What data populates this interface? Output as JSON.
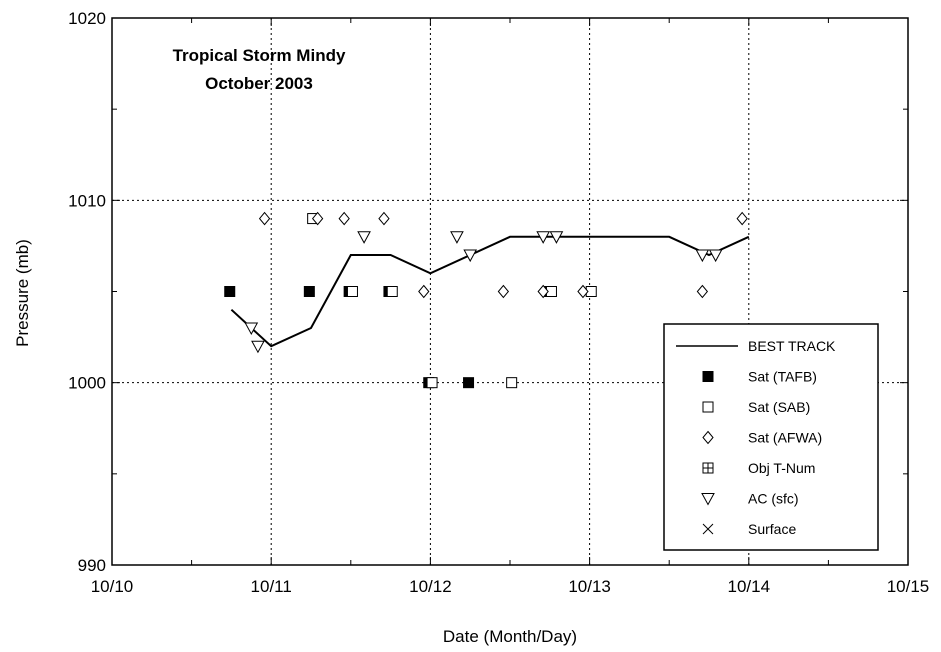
{
  "chart_data": {
    "type": "scatter",
    "title": "Tropical Storm Mindy",
    "subtitle": "October 2003",
    "xlabel": "Date (Month/Day)",
    "ylabel": "Pressure (mb)",
    "xlim": [
      "10/10 00:00",
      "10/15 00:00"
    ],
    "ylim": [
      990,
      1020
    ],
    "x_ticks": [
      "10/10",
      "10/11",
      "10/12",
      "10/13",
      "10/14",
      "10/15"
    ],
    "y_ticks": [
      "990",
      "1000",
      "1010",
      "1020"
    ],
    "grid": "dotted at major ticks",
    "legend_position": "bottom-right",
    "series": [
      {
        "name": "BEST TRACK",
        "marker": "line",
        "points": [
          {
            "x": "10/10 18:00",
            "y": 1004
          },
          {
            "x": "10/11 00:00",
            "y": 1002
          },
          {
            "x": "10/11 06:00",
            "y": 1003
          },
          {
            "x": "10/11 12:00",
            "y": 1007
          },
          {
            "x": "10/11 18:00",
            "y": 1007
          },
          {
            "x": "10/12 00:00",
            "y": 1006
          },
          {
            "x": "10/12 12:00",
            "y": 1008
          },
          {
            "x": "10/13 12:00",
            "y": 1008
          },
          {
            "x": "10/13 18:00",
            "y": 1007
          },
          {
            "x": "10/14 00:00",
            "y": 1008
          }
        ]
      },
      {
        "name": "Sat (TAFB)",
        "marker": "filled-square",
        "points": [
          {
            "x": "10/10 17:45",
            "y": 1005
          },
          {
            "x": "10/11 05:45",
            "y": 1005
          },
          {
            "x": "10/11 11:45",
            "y": 1005
          },
          {
            "x": "10/11 17:45",
            "y": 1005
          },
          {
            "x": "10/11 23:45",
            "y": 1000
          },
          {
            "x": "10/12 05:45",
            "y": 1000
          },
          {
            "x": "10/12 17:45",
            "y": 1005
          }
        ]
      },
      {
        "name": "Sat (SAB)",
        "marker": "open-square",
        "points": [
          {
            "x": "10/11 06:15",
            "y": 1009
          },
          {
            "x": "10/11 12:15",
            "y": 1005
          },
          {
            "x": "10/11 18:15",
            "y": 1005
          },
          {
            "x": "10/12 00:15",
            "y": 1000
          },
          {
            "x": "10/12 12:15",
            "y": 1000
          },
          {
            "x": "10/12 18:15",
            "y": 1005
          },
          {
            "x": "10/13 00:15",
            "y": 1005
          }
        ]
      },
      {
        "name": "Sat (AFWA)",
        "marker": "diamond",
        "points": [
          {
            "x": "10/10 23:00",
            "y": 1009
          },
          {
            "x": "10/11 07:00",
            "y": 1009
          },
          {
            "x": "10/11 11:00",
            "y": 1009
          },
          {
            "x": "10/11 17:00",
            "y": 1009
          },
          {
            "x": "10/11 23:00",
            "y": 1005
          },
          {
            "x": "10/12 11:00",
            "y": 1005
          },
          {
            "x": "10/12 17:00",
            "y": 1005
          },
          {
            "x": "10/12 23:00",
            "y": 1005
          },
          {
            "x": "10/13 17:00",
            "y": 1005
          },
          {
            "x": "10/13 23:00",
            "y": 1009
          }
        ]
      },
      {
        "name": "Obj T-Num",
        "marker": "crossed-square",
        "points": []
      },
      {
        "name": "AC (sfc)",
        "marker": "down-triangle",
        "points": [
          {
            "x": "10/10 21:00",
            "y": 1003
          },
          {
            "x": "10/10 22:00",
            "y": 1002
          },
          {
            "x": "10/11 14:00",
            "y": 1008
          },
          {
            "x": "10/12 04:00",
            "y": 1008
          },
          {
            "x": "10/12 06:00",
            "y": 1007
          },
          {
            "x": "10/12 17:00",
            "y": 1008
          },
          {
            "x": "10/12 19:00",
            "y": 1008
          },
          {
            "x": "10/13 17:00",
            "y": 1007
          },
          {
            "x": "10/13 19:00",
            "y": 1007
          }
        ]
      },
      {
        "name": "Surface",
        "marker": "x",
        "points": []
      }
    ]
  }
}
